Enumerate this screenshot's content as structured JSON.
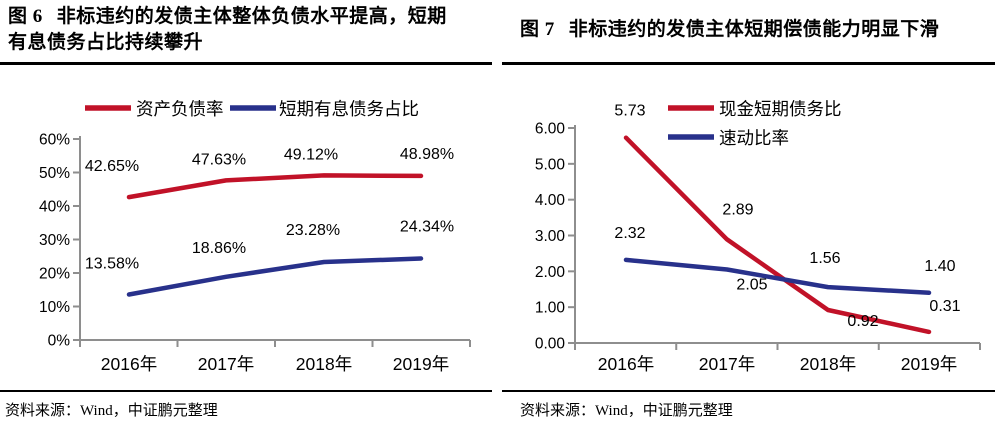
{
  "panels": [
    {
      "figure_label": "图 6",
      "title": "非标违约的发债主体整体负债水平提高，短期有息债务占比持续攀升",
      "source": "资料来源：Wind，中证鹏元整理"
    },
    {
      "figure_label": "图 7",
      "title": "非标违约的发债主体短期偿债能力明显下滑",
      "source": "资料来源：Wind，中证鹏元整理"
    }
  ],
  "colors": {
    "red": "#c11228",
    "blue": "#28318b",
    "axis": "#8e8e8e",
    "rule": "#000000"
  },
  "chart_data": [
    {
      "type": "line",
      "title": "图 6 非标违约的发债主体整体负债水平提高，短期有息债务占比持续攀升",
      "categories": [
        "2016年",
        "2017年",
        "2018年",
        "2019年"
      ],
      "series": [
        {
          "name": "资产负债率",
          "color": "#c11228",
          "values": [
            42.65,
            47.63,
            49.12,
            48.98
          ],
          "point_labels": [
            "42.65%",
            "47.63%",
            "49.12%",
            "48.98%"
          ]
        },
        {
          "name": "短期有息债务占比",
          "color": "#28318b",
          "values": [
            13.58,
            18.86,
            23.28,
            24.34
          ],
          "point_labels": [
            "13.58%",
            "18.86%",
            "23.28%",
            "24.34%"
          ]
        }
      ],
      "xlabel": "",
      "ylabel": "",
      "ylim": [
        0,
        60
      ],
      "ytick_labels": [
        "0%",
        "10%",
        "20%",
        "30%",
        "40%",
        "50%",
        "60%"
      ],
      "grid": false,
      "legend_position": "top-center"
    },
    {
      "type": "line",
      "title": "图 7 非标违约的发债主体短期偿债能力明显下滑",
      "categories": [
        "2016年",
        "2017年",
        "2018年",
        "2019年"
      ],
      "series": [
        {
          "name": "现金短期债务比",
          "color": "#c11228",
          "values": [
            5.73,
            2.89,
            0.92,
            0.31
          ],
          "point_labels": [
            "5.73",
            "2.89",
            "0.92",
            "0.31"
          ]
        },
        {
          "name": "速动比率",
          "color": "#28318b",
          "values": [
            2.32,
            2.05,
            1.56,
            1.4
          ],
          "point_labels": [
            "2.32",
            "2.05",
            "1.56",
            "1.40"
          ]
        }
      ],
      "xlabel": "",
      "ylabel": "",
      "ylim": [
        0,
        6
      ],
      "ytick_labels": [
        "0.00",
        "1.00",
        "2.00",
        "3.00",
        "4.00",
        "5.00",
        "6.00"
      ],
      "grid": false,
      "legend_position": "top-inside"
    }
  ]
}
